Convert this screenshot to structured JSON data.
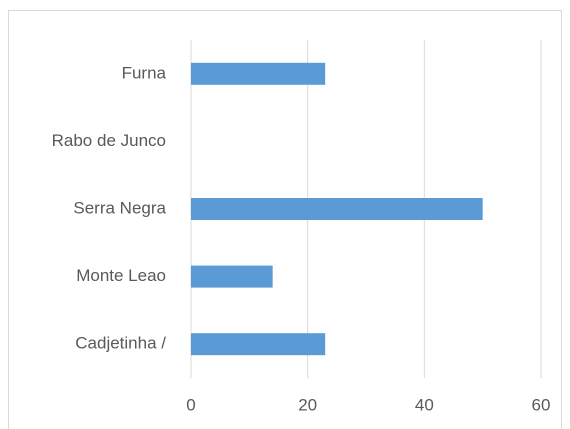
{
  "chart_data": {
    "type": "bar",
    "orientation": "horizontal",
    "categories": [
      "Furna",
      "Rabo de Junco",
      "Serra Negra",
      "Monte Leao",
      "Cadjetinha /"
    ],
    "values": [
      23,
      0,
      50,
      14,
      23
    ],
    "color": "#5b9bd5",
    "xlim": [
      0,
      60
    ],
    "xticks": [
      0,
      20,
      40,
      60
    ],
    "grid": true
  }
}
